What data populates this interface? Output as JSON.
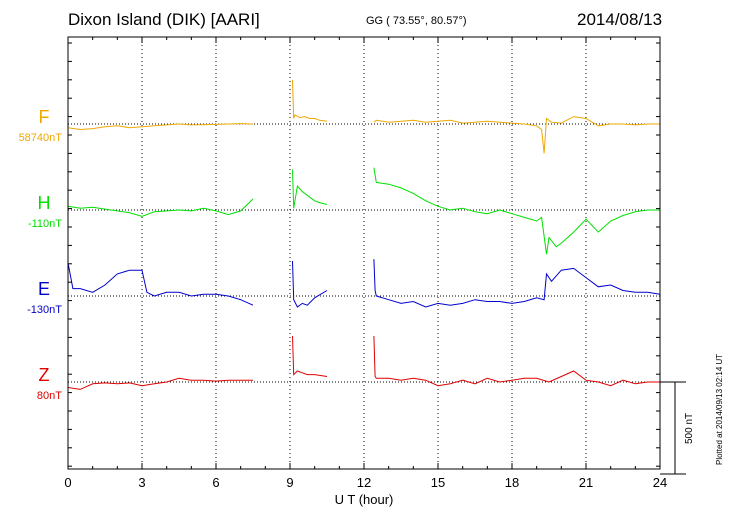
{
  "header": {
    "station": "Dixon Island (DIK)  [AARI]",
    "coords": "GG ( 73.55°,  80.57°)",
    "date": "2014/08/13"
  },
  "footnote": "Plotted at 2014/09/13 02:14 UT",
  "scale_label": "500 nT",
  "colors": {
    "F": "#f0a800",
    "H": "#00e000",
    "E": "#0000cc",
    "Z": "#e00000"
  },
  "chart_data": {
    "type": "line",
    "xlabel": "U T (hour)",
    "ylabel": "",
    "xlim": [
      0,
      24
    ],
    "x_ticks": [
      "0",
      "3",
      "6",
      "9",
      "12",
      "15",
      "18",
      "21",
      "24"
    ],
    "grid": true,
    "scale_bar_nT": 500,
    "series": [
      {
        "name": "F",
        "baseline_label": "58740nT",
        "segments": [
          {
            "x": [
              0,
              0.5,
              1,
              1.5,
              2,
              2.5,
              3,
              3.5,
              4,
              4.5,
              5,
              5.5,
              6,
              6.5,
              7,
              7.5
            ],
            "y": [
              -20,
              -30,
              -25,
              -15,
              -10,
              -20,
              -15,
              -10,
              -5,
              0,
              -5,
              -3,
              -2,
              0,
              2,
              0
            ]
          },
          {
            "x": [
              9.1,
              9.15,
              9.2,
              9.4,
              9.6,
              9.8,
              10,
              10.2,
              10.5
            ],
            "y": [
              240,
              30,
              50,
              35,
              40,
              30,
              30,
              20,
              15
            ]
          },
          {
            "x": [
              12.4,
              12.5,
              13,
              13.5,
              14,
              14.5,
              15,
              15.5,
              16,
              16.5,
              17,
              17.5,
              18,
              18.5,
              19,
              19.2,
              19.3,
              19.4,
              19.6,
              20,
              20.5,
              21,
              21.5,
              22,
              22.5,
              23,
              23.5,
              24
            ],
            "y": [
              10,
              20,
              10,
              15,
              20,
              10,
              15,
              20,
              5,
              10,
              15,
              10,
              5,
              0,
              -10,
              -30,
              -160,
              30,
              10,
              5,
              40,
              30,
              -10,
              0,
              0,
              -5,
              0,
              0
            ]
          }
        ]
      },
      {
        "name": "H",
        "baseline_label": "-110nT",
        "segments": [
          {
            "x": [
              0,
              0.5,
              1,
              1.5,
              2,
              2.5,
              3,
              3.5,
              4,
              4.5,
              5,
              5.5,
              6,
              6.5,
              7,
              7.5
            ],
            "y": [
              20,
              10,
              15,
              5,
              -5,
              -15,
              -35,
              -10,
              -5,
              0,
              -5,
              10,
              -5,
              -25,
              -5,
              60
            ]
          },
          {
            "x": [
              9.1,
              9.15,
              9.3,
              9.5,
              9.7,
              10,
              10.2,
              10.5
            ],
            "y": [
              220,
              10,
              130,
              100,
              80,
              50,
              40,
              30
            ]
          },
          {
            "x": [
              12.4,
              12.5,
              13,
              13.5,
              14,
              14.5,
              15,
              15.5,
              16,
              16.5,
              17,
              17.5,
              18,
              18.5,
              19,
              19.2,
              19.4,
              19.5,
              19.8,
              20,
              20.5,
              21,
              21.5,
              22,
              22.5,
              23,
              23.5,
              24
            ],
            "y": [
              230,
              150,
              140,
              120,
              90,
              50,
              20,
              0,
              10,
              -10,
              -20,
              0,
              -20,
              -40,
              -60,
              -40,
              -240,
              -150,
              -200,
              -180,
              -120,
              -50,
              -120,
              -60,
              -30,
              -10,
              0,
              0
            ]
          }
        ]
      },
      {
        "name": "E",
        "baseline_label": "-130nT",
        "segments": [
          {
            "x": [
              0,
              0.2,
              0.5,
              1,
              1.5,
              2,
              2.5,
              3,
              3.2,
              3.5,
              4,
              4.5,
              5,
              5.5,
              6,
              6.5,
              7,
              7.5
            ],
            "y": [
              180,
              40,
              40,
              20,
              60,
              120,
              140,
              140,
              20,
              0,
              20,
              20,
              0,
              10,
              10,
              0,
              -20,
              -50
            ]
          },
          {
            "x": [
              9.1,
              9.15,
              9.3,
              9.5,
              9.7,
              10,
              10.5
            ],
            "y": [
              190,
              -20,
              -60,
              -40,
              -50,
              -10,
              30
            ]
          },
          {
            "x": [
              12.4,
              12.45,
              12.5,
              13,
              13.5,
              14,
              14.5,
              15,
              15.5,
              16,
              16.5,
              17,
              17.5,
              18,
              18.5,
              19,
              19.3,
              19.4,
              19.6,
              20,
              20.5,
              21,
              21.5,
              22,
              22.5,
              23,
              23.5,
              24
            ],
            "y": [
              200,
              30,
              0,
              -20,
              -40,
              -30,
              -60,
              -40,
              -50,
              -40,
              -20,
              -30,
              -30,
              -40,
              -30,
              -10,
              -20,
              120,
              80,
              140,
              150,
              100,
              50,
              60,
              30,
              20,
              20,
              10
            ]
          }
        ]
      },
      {
        "name": "Z",
        "baseline_label": "80nT",
        "segments": [
          {
            "x": [
              0,
              0.5,
              1,
              1.5,
              2,
              2.5,
              3,
              3.5,
              4,
              4.5,
              5,
              5.5,
              6,
              6.5,
              7,
              7.5
            ],
            "y": [
              -30,
              -40,
              -10,
              -5,
              -10,
              -5,
              -20,
              -10,
              0,
              20,
              10,
              10,
              5,
              10,
              10,
              10
            ]
          },
          {
            "x": [
              9.1,
              9.15,
              9.3,
              9.5,
              9.7,
              10,
              10.5
            ],
            "y": [
              250,
              40,
              60,
              50,
              40,
              40,
              30
            ]
          },
          {
            "x": [
              12.4,
              12.45,
              12.5,
              13,
              13.5,
              14,
              14.5,
              15,
              15.5,
              16,
              16.5,
              17,
              17.5,
              18,
              18.5,
              19,
              19.5,
              20,
              20.5,
              21,
              21.5,
              22,
              22.5,
              23,
              23.5,
              24
            ],
            "y": [
              250,
              30,
              20,
              20,
              10,
              20,
              10,
              -20,
              -10,
              10,
              -10,
              20,
              0,
              10,
              20,
              20,
              0,
              30,
              60,
              10,
              0,
              -20,
              10,
              -10,
              0,
              0
            ]
          }
        ]
      }
    ]
  }
}
